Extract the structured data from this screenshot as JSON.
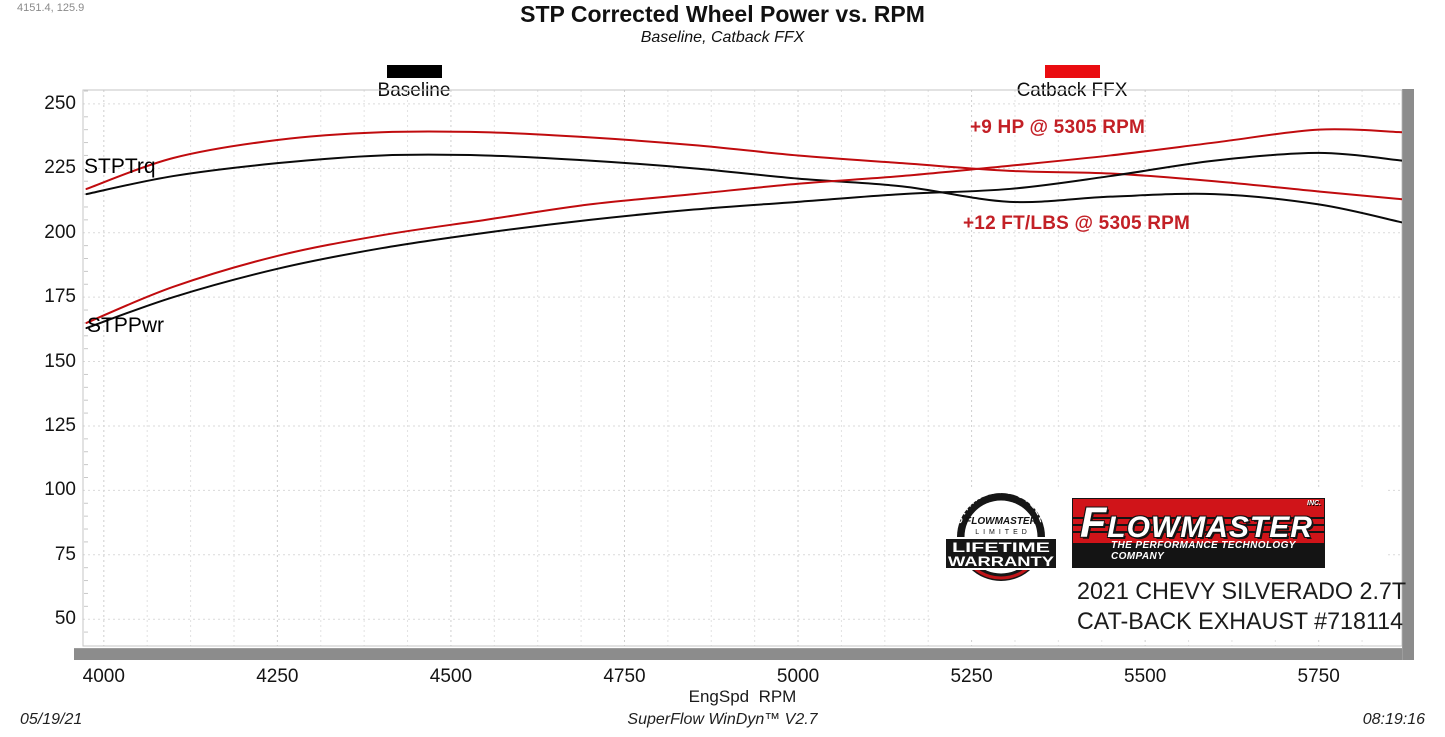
{
  "window": {
    "cursor_readout": "4151.4, 125.9"
  },
  "header": {
    "title": "STP Corrected Wheel Power vs. RPM",
    "subtitle": "Baseline, Catback FFX"
  },
  "legend": {
    "baseline": {
      "label": "Baseline",
      "color": "#000000"
    },
    "catback": {
      "label": "Catback FFX",
      "color": "#ea0c10"
    }
  },
  "chart_data": {
    "type": "line",
    "title": "STP Corrected Wheel Power vs. RPM",
    "subtitle": "Baseline, Catback FFX",
    "xlabel": "EngSpd  RPM",
    "ylabel": "",
    "xlim": [
      3970,
      5870
    ],
    "ylim": [
      39.6,
      255.4
    ],
    "x_ticks": [
      4000,
      4250,
      4500,
      4750,
      5000,
      5250,
      5500,
      5750
    ],
    "y_ticks": [
      250,
      225,
      200,
      175,
      150,
      125,
      100,
      75,
      50
    ],
    "grid": "dashed",
    "legend_position": "top",
    "x": [
      3975,
      4100,
      4250,
      4400,
      4550,
      4700,
      4850,
      5000,
      5150,
      5305,
      5450,
      5600,
      5750,
      5870
    ],
    "series": [
      {
        "name": "STPTrq Baseline",
        "legend": "Baseline",
        "color": "#0a0a0a",
        "values": [
          215,
          222,
          227,
          230,
          230,
          228,
          225,
          221,
          218,
          212,
          214,
          215,
          211,
          204
        ]
      },
      {
        "name": "STPTrq Catback FFX",
        "legend": "Catback FFX",
        "color": "#c00b0e",
        "values": [
          217,
          229,
          236,
          239,
          239,
          237,
          234,
          230,
          227,
          224,
          223,
          220,
          216,
          213
        ]
      },
      {
        "name": "STPPwr Baseline",
        "legend": "Baseline",
        "color": "#0a0a0a",
        "values": [
          163,
          175,
          186,
          194,
          200,
          205,
          209,
          212,
          215,
          217,
          222,
          228,
          231,
          228
        ]
      },
      {
        "name": "STPPwr Catback FFX",
        "legend": "Catback FFX",
        "color": "#c00b0e",
        "values": [
          165,
          179,
          191,
          199,
          205,
          211,
          215,
          219,
          222,
          226,
          230,
          235,
          240,
          239
        ]
      }
    ],
    "curve_labels": {
      "torque": "STPTrq",
      "power": "STPPwr"
    },
    "annotations": [
      {
        "text": "+9 HP @ 5305 RPM"
      },
      {
        "text": "+12 FT/LBS @ 5305 RPM"
      }
    ]
  },
  "logo_panel": {
    "badge": {
      "arc_text": "STAINLESS STEEL",
      "brand": "FLOWMASTER",
      "limited": "LIMITED",
      "line1": "LIFETIME",
      "line2": "WARRANTY"
    },
    "logo": {
      "brand": "FLOWMASTER",
      "inc": "INC.",
      "tagline": "THE PERFORMANCE TECHNOLOGY COMPANY"
    },
    "vehicle_line1": "2021 CHEVY SILVERADO 2.7T",
    "vehicle_line2": "CAT-BACK EXHAUST #718114"
  },
  "footer": {
    "date": "05/19/21",
    "software": "SuperFlow WinDyn™ V2.7",
    "time": "08:19:16"
  }
}
